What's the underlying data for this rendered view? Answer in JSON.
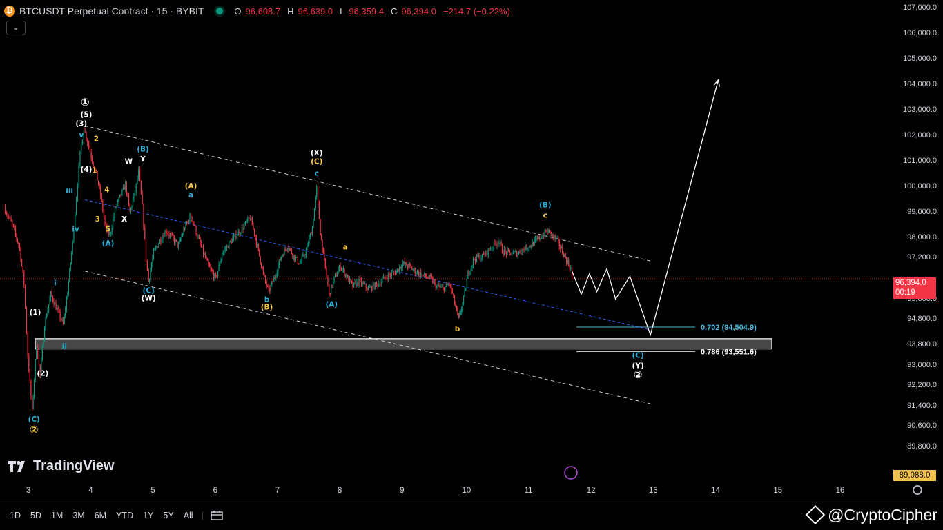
{
  "header": {
    "symbol": "BTCUSDT Perpetual Contract · 15 · BYBIT",
    "open_label": "O",
    "open": "96,608.7",
    "high_label": "H",
    "high": "96,639.0",
    "low_label": "L",
    "low": "96,359.4",
    "close_label": "C",
    "close": "96,394.0",
    "change": "−214.7 (−0.22%)"
  },
  "price_axis": {
    "labels": [
      "107,000.0",
      "106,000.0",
      "105,000.0",
      "104,000.0",
      "103,000.0",
      "102,000.0",
      "101,000.0",
      "100,000.0",
      "99,000.0",
      "98,000.0",
      "97,200.0",
      "95,600.0",
      "94,800.0",
      "93,800.0",
      "93,000.0",
      "92,200.0",
      "91,400.0",
      "90,600.0",
      "89,800.0"
    ],
    "last_price": "96,394.0",
    "countdown": "00:19",
    "low_marker": "89,088.0"
  },
  "time_axis": {
    "labels": [
      "3",
      "4",
      "5",
      "6",
      "7",
      "8",
      "9",
      "10",
      "11",
      "12",
      "13",
      "14",
      "15",
      "16"
    ]
  },
  "toolbar": {
    "timeframes": [
      "1D",
      "5D",
      "1M",
      "3M",
      "6M",
      "YTD",
      "1Y",
      "5Y",
      "All"
    ],
    "compare_icon": "calendar-range-icon"
  },
  "branding": {
    "logo_text": "TradingView",
    "watermark": "@CryptoCipher"
  },
  "colors": {
    "up": "#089981",
    "down": "#f23645",
    "white_labels": "#ffffff",
    "blue_labels": "#2ab0d8",
    "yellow_labels": "#f5c542",
    "fib": "#4cb8e0"
  },
  "chart_data": {
    "type": "candlestick",
    "interval": "15",
    "exchange": "BYBIT",
    "x_domain_days": [
      3,
      16
    ],
    "ylim": [
      89088,
      107000
    ],
    "close_path": [
      [
        2.6,
        99200
      ],
      [
        2.75,
        98400
      ],
      [
        2.85,
        97600
      ],
      [
        2.92,
        96200
      ],
      [
        2.98,
        93400
      ],
      [
        3.05,
        91200
      ],
      [
        3.12,
        93800
      ],
      [
        3.18,
        92600
      ],
      [
        3.25,
        94600
      ],
      [
        3.35,
        95800
      ],
      [
        3.45,
        95200
      ],
      [
        3.55,
        94600
      ],
      [
        3.62,
        95900
      ],
      [
        3.7,
        97800
      ],
      [
        3.76,
        99600
      ],
      [
        3.82,
        101300
      ],
      [
        3.88,
        102300
      ],
      [
        3.94,
        101800
      ],
      [
        4.0,
        101200
      ],
      [
        4.08,
        100500
      ],
      [
        4.15,
        99700
      ],
      [
        4.22,
        98500
      ],
      [
        4.3,
        98100
      ],
      [
        4.38,
        99100
      ],
      [
        4.46,
        99600
      ],
      [
        4.55,
        100100
      ],
      [
        4.62,
        99000
      ],
      [
        4.7,
        99800
      ],
      [
        4.76,
        100600
      ],
      [
        4.82,
        99200
      ],
      [
        4.88,
        97200
      ],
      [
        4.92,
        96300
      ],
      [
        5.0,
        97400
      ],
      [
        5.1,
        97900
      ],
      [
        5.2,
        98300
      ],
      [
        5.3,
        98000
      ],
      [
        5.4,
        97700
      ],
      [
        5.5,
        98400
      ],
      [
        5.6,
        98900
      ],
      [
        5.7,
        98100
      ],
      [
        5.8,
        97400
      ],
      [
        5.9,
        96800
      ],
      [
        6.0,
        96400
      ],
      [
        6.1,
        97400
      ],
      [
        6.25,
        97900
      ],
      [
        6.4,
        98300
      ],
      [
        6.55,
        98800
      ],
      [
        6.62,
        98200
      ],
      [
        6.7,
        97300
      ],
      [
        6.78,
        96400
      ],
      [
        6.85,
        95900
      ],
      [
        6.95,
        96500
      ],
      [
        7.05,
        97300
      ],
      [
        7.15,
        97700
      ],
      [
        7.25,
        97300
      ],
      [
        7.35,
        97000
      ],
      [
        7.45,
        97500
      ],
      [
        7.55,
        98400
      ],
      [
        7.62,
        99900
      ],
      [
        7.68,
        98200
      ],
      [
        7.76,
        96800
      ],
      [
        7.82,
        95800
      ],
      [
        7.9,
        96400
      ],
      [
        8.0,
        96900
      ],
      [
        8.1,
        96500
      ],
      [
        8.2,
        96100
      ],
      [
        8.3,
        96300
      ],
      [
        8.45,
        96000
      ],
      [
        8.6,
        96200
      ],
      [
        8.75,
        96500
      ],
      [
        8.9,
        96700
      ],
      [
        9.0,
        97000
      ],
      [
        9.1,
        96900
      ],
      [
        9.2,
        96700
      ],
      [
        9.35,
        96500
      ],
      [
        9.45,
        96400
      ],
      [
        9.55,
        96100
      ],
      [
        9.65,
        96000
      ],
      [
        9.75,
        96200
      ],
      [
        9.8,
        95800
      ],
      [
        9.9,
        94800
      ],
      [
        9.98,
        95600
      ],
      [
        10.05,
        96600
      ],
      [
        10.15,
        97200
      ],
      [
        10.3,
        97300
      ],
      [
        10.45,
        97700
      ],
      [
        10.55,
        97900
      ],
      [
        10.6,
        97500
      ],
      [
        10.7,
        97400
      ],
      [
        10.85,
        97400
      ],
      [
        10.95,
        97600
      ],
      [
        11.05,
        97700
      ],
      [
        11.15,
        97900
      ],
      [
        11.25,
        98100
      ],
      [
        11.32,
        98300
      ],
      [
        11.4,
        98100
      ],
      [
        11.5,
        97800
      ],
      [
        11.6,
        97300
      ],
      [
        11.7,
        96800
      ],
      [
        11.72,
        96394
      ]
    ],
    "projection_path": [
      [
        11.72,
        96700
      ],
      [
        11.87,
        95800
      ],
      [
        12.0,
        96600
      ],
      [
        12.12,
        95900
      ],
      [
        12.28,
        96800
      ],
      [
        12.42,
        95600
      ],
      [
        12.65,
        96500
      ],
      [
        12.98,
        94200
      ],
      [
        14.07,
        104200
      ]
    ],
    "channel_upper": [
      [
        3.9,
        102400
      ],
      [
        12.98,
        97100
      ]
    ],
    "channel_lower": [
      [
        3.9,
        96700
      ],
      [
        12.98,
        91500
      ]
    ],
    "channel_mid": [
      [
        3.9,
        99500
      ],
      [
        12.98,
        94400
      ]
    ],
    "support_zone": [
      94050,
      93650
    ],
    "fib_levels": [
      {
        "label": "0.702 (94,504.9)",
        "price": 94504.9,
        "color": "#4cb8e0"
      },
      {
        "label": "0.786 (93,551.6)",
        "price": 93551.6,
        "color": "#ffffff"
      }
    ],
    "wave_labels": [
      {
        "text": "①",
        "t": 3.9,
        "p": 103200,
        "color": "white"
      },
      {
        "text": "(5)",
        "t": 3.92,
        "p": 102750,
        "color": "white"
      },
      {
        "text": "(3)",
        "t": 3.84,
        "p": 102400,
        "color": "white"
      },
      {
        "text": "v",
        "t": 3.84,
        "p": 101950,
        "color": "blue"
      },
      {
        "text": "2",
        "t": 4.08,
        "p": 101800,
        "color": "yellow"
      },
      {
        "text": "(4)",
        "t": 3.92,
        "p": 100600,
        "color": "white"
      },
      {
        "text": "1",
        "t": 4.05,
        "p": 100550,
        "color": "yellow"
      },
      {
        "text": "iii",
        "t": 3.65,
        "p": 99750,
        "color": "blue"
      },
      {
        "text": "4",
        "t": 4.25,
        "p": 99800,
        "color": "yellow"
      },
      {
        "text": "iv",
        "t": 3.75,
        "p": 98250,
        "color": "blue"
      },
      {
        "text": "3",
        "t": 4.1,
        "p": 98650,
        "color": "yellow"
      },
      {
        "text": "5",
        "t": 4.27,
        "p": 98250,
        "color": "yellow"
      },
      {
        "text": "(A)",
        "t": 4.27,
        "p": 97700,
        "color": "blue"
      },
      {
        "text": "(B)",
        "t": 4.83,
        "p": 101400,
        "color": "blue"
      },
      {
        "text": "W",
        "t": 4.6,
        "p": 100900,
        "color": "white"
      },
      {
        "text": "Y",
        "t": 4.83,
        "p": 101000,
        "color": "white"
      },
      {
        "text": "X",
        "t": 4.53,
        "p": 98650,
        "color": "white"
      },
      {
        "text": "(C)",
        "t": 4.92,
        "p": 95850,
        "color": "blue"
      },
      {
        "text": "(W)",
        "t": 4.92,
        "p": 95550,
        "color": "white"
      },
      {
        "text": "(A)",
        "t": 5.6,
        "p": 99950,
        "color": "yellow"
      },
      {
        "text": "a",
        "t": 5.6,
        "p": 99600,
        "color": "blue"
      },
      {
        "text": "b",
        "t": 6.82,
        "p": 95500,
        "color": "blue"
      },
      {
        "text": "(B)",
        "t": 6.82,
        "p": 95200,
        "color": "yellow"
      },
      {
        "text": "(X)",
        "t": 7.62,
        "p": 101250,
        "color": "white"
      },
      {
        "text": "(C)",
        "t": 7.62,
        "p": 100900,
        "color": "yellow"
      },
      {
        "text": "c",
        "t": 7.62,
        "p": 100450,
        "color": "blue"
      },
      {
        "text": "(A)",
        "t": 7.86,
        "p": 95300,
        "color": "blue"
      },
      {
        "text": "a",
        "t": 8.08,
        "p": 97550,
        "color": "yellow"
      },
      {
        "text": "b",
        "t": 9.88,
        "p": 94350,
        "color": "yellow"
      },
      {
        "text": "(B)",
        "t": 11.29,
        "p": 99200,
        "color": "blue"
      },
      {
        "text": "c",
        "t": 11.29,
        "p": 98800,
        "color": "yellow"
      },
      {
        "text": "(C)",
        "t": 12.78,
        "p": 93300,
        "color": "blue"
      },
      {
        "text": "(Y)",
        "t": 12.78,
        "p": 92900,
        "color": "white"
      },
      {
        "text": "②",
        "t": 12.78,
        "p": 92500,
        "color": "white"
      },
      {
        "text": "i",
        "t": 3.42,
        "p": 96150,
        "color": "blue"
      },
      {
        "text": "(1)",
        "t": 3.1,
        "p": 95000,
        "color": "white"
      },
      {
        "text": "ii",
        "t": 3.57,
        "p": 93650,
        "color": "blue"
      },
      {
        "text": "(2)",
        "t": 3.22,
        "p": 92600,
        "color": "white"
      },
      {
        "text": "(C)",
        "t": 3.08,
        "p": 90800,
        "color": "blue"
      },
      {
        "text": "②",
        "t": 3.08,
        "p": 90350,
        "color": "yellow"
      }
    ]
  }
}
